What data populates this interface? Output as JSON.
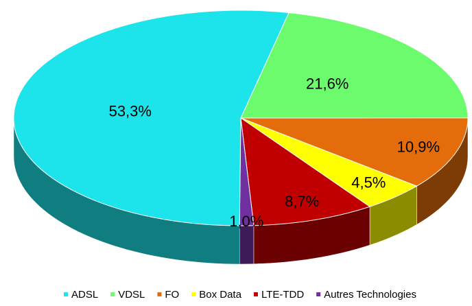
{
  "chart_data": {
    "type": "pie",
    "categories": [
      "ADSL",
      "VDSL",
      "FO",
      "Box Data",
      "LTE-TDD",
      "Autres Technologies"
    ],
    "values": [
      53.3,
      21.6,
      10.9,
      4.5,
      8.7,
      1.0
    ],
    "value_labels": [
      "53,3%",
      "21,6%",
      "10,9%",
      "4,5%",
      "8,7%",
      "1,0%"
    ],
    "colors": [
      "#1de3ea",
      "#6cfb6c",
      "#e46c0a",
      "#ffff00",
      "#c00000",
      "#7030a0"
    ],
    "legend": "bottom",
    "3d": true
  }
}
